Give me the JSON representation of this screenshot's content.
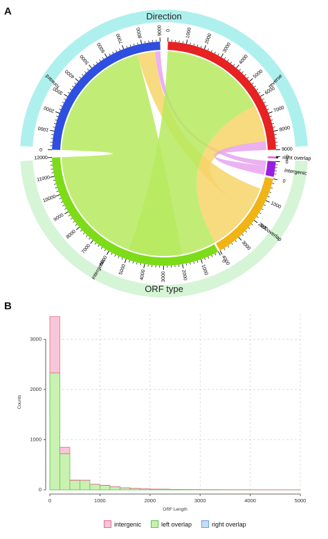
{
  "panel_a": {
    "letter": "A",
    "outer_top_label": "Direction",
    "outer_bottom_label": "ORF type",
    "sectors": [
      {
        "id": "forward",
        "label": "forward",
        "max": 9000,
        "ticks": [
          0,
          1000,
          2000,
          3000,
          4000,
          5000,
          6000,
          7000,
          8000,
          9000
        ],
        "color": "#2f4fe0",
        "group": "direction"
      },
      {
        "id": "reverse",
        "label": "reverse",
        "max": 9000,
        "ticks": [
          0,
          1000,
          2000,
          3000,
          4000,
          5000,
          6000,
          7000,
          8000,
          9000
        ],
        "color": "#e62222",
        "group": "direction"
      },
      {
        "id": "right_overlap",
        "label": "right overlap",
        "max": 0,
        "ticks": [
          0
        ],
        "color": "#d86ee0",
        "group": "orf"
      },
      {
        "id": "intergenic",
        "label": "intergenic",
        "max": 800,
        "ticks": [
          0
        ],
        "color": "#9a1ee0",
        "group": "orf"
      },
      {
        "id": "left_overlap",
        "label": "left overlap",
        "max": 4000,
        "ticks": [
          0,
          1000,
          2000,
          3000,
          4000
        ],
        "color": "#f0b414",
        "group": "orf"
      },
      {
        "id": "intergenic2",
        "label": "intergenic",
        "max": 12000,
        "ticks": [
          0,
          1000,
          2000,
          3000,
          4000,
          5000,
          6000,
          7000,
          8000,
          9000,
          10000,
          11000,
          12000
        ],
        "color": "#7ddc18",
        "group": "orf"
      }
    ],
    "colors": {
      "direction_ring": "#aef0ee",
      "orf_ring": "#d6f4d6",
      "link_green": "#b6ea5e",
      "link_yellow": "#f7d468",
      "link_pink": "#e7a3ee"
    }
  },
  "panel_b": {
    "letter": "B",
    "chart_data": {
      "type": "bar",
      "title": "",
      "xlabel": "ORF Length",
      "ylabel": "Counts",
      "xlim": [
        0,
        5000
      ],
      "ylim": [
        0,
        3500
      ],
      "xticks": [
        0,
        1000,
        2000,
        3000,
        4000,
        5000
      ],
      "yticks": [
        0,
        1000,
        2000,
        3000
      ],
      "grid": true,
      "legend_position": "bottom",
      "bin_width": 200,
      "bins_start": [
        0,
        200,
        400,
        600,
        800,
        1000,
        1200,
        1400,
        1600,
        1800,
        2000,
        2200,
        2400,
        2600,
        2800,
        3000,
        3200,
        3400,
        3600,
        3800,
        4000,
        4200,
        4400,
        4600,
        4800
      ],
      "stacked": true,
      "series": [
        {
          "name": "left  overlap",
          "color": "#c9f1b2",
          "stroke": "#58c44a",
          "values": [
            2330,
            720,
            190,
            190,
            110,
            90,
            60,
            40,
            30,
            20,
            15,
            12,
            8,
            5,
            4,
            3,
            3,
            2,
            2,
            2,
            1,
            1,
            1,
            1,
            1
          ]
        },
        {
          "name": "intergenic",
          "color": "#f7c6d8",
          "stroke": "#e36d8a",
          "values": [
            1120,
            130,
            5,
            3,
            2,
            2,
            1,
            1,
            1,
            1,
            1,
            1,
            1,
            1,
            1,
            1,
            1,
            1,
            1,
            1,
            1,
            1,
            1,
            1,
            1
          ]
        },
        {
          "name": "right  overlap",
          "color": "#c6dcf7",
          "stroke": "#6d9fe3",
          "values": [
            0,
            0,
            0,
            0,
            0,
            0,
            0,
            0,
            0,
            0,
            0,
            0,
            0,
            0,
            0,
            0,
            0,
            0,
            0,
            0,
            0,
            0,
            0,
            0,
            0
          ]
        }
      ]
    },
    "legend": [
      {
        "label": "intergenic",
        "fill": "#f7c6d8",
        "stroke": "#e36d8a"
      },
      {
        "label": "left  overlap",
        "fill": "#c9f1b2",
        "stroke": "#58c44a"
      },
      {
        "label": "right  overlap",
        "fill": "#c6dcf7",
        "stroke": "#6d9fe3"
      }
    ]
  }
}
